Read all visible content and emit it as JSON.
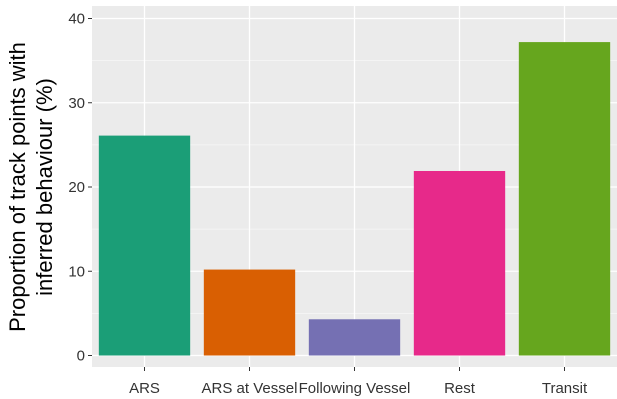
{
  "chart_data": {
    "type": "bar",
    "title": "",
    "xlabel": "",
    "ylabel_lines": [
      "Proportion of track points with",
      "inferred behaviour (%)"
    ],
    "categories": [
      "ARS",
      "ARS at Vessel",
      "Following Vessel",
      "Rest",
      "Transit"
    ],
    "values": [
      26.1,
      10.2,
      4.3,
      21.9,
      37.2
    ],
    "colors": [
      "#1b9e77",
      "#d95f02",
      "#7570b3",
      "#e7298a",
      "#66a61e"
    ],
    "ylim": [
      0,
      40
    ],
    "yticks": [
      "0",
      "10",
      "20",
      "30",
      "40"
    ],
    "grid": true,
    "panel_background": "#ebebeb",
    "legend": "none"
  }
}
